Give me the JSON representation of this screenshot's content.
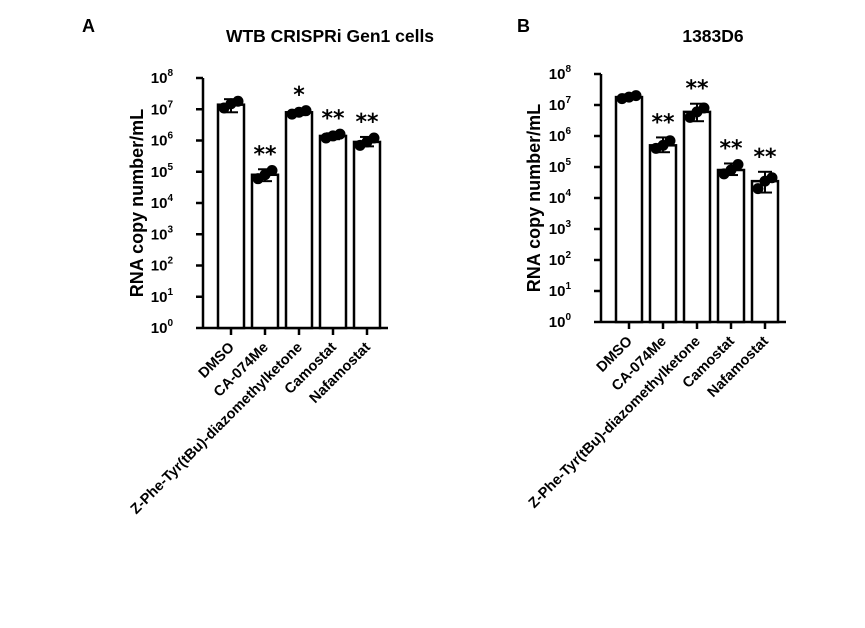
{
  "chart_data": [
    {
      "type": "bar",
      "panel": "A",
      "title": "WTB CRISPRi Gen1 cells",
      "xlabel": "",
      "ylabel": "RNA copy number/mL",
      "yscale": "log",
      "ylim": [
        1,
        100000000
      ],
      "yticks": [
        {
          "base": "10",
          "exp": "0"
        },
        {
          "base": "10",
          "exp": "1"
        },
        {
          "base": "10",
          "exp": "2"
        },
        {
          "base": "10",
          "exp": "3"
        },
        {
          "base": "10",
          "exp": "4"
        },
        {
          "base": "10",
          "exp": "5"
        },
        {
          "base": "10",
          "exp": "6"
        },
        {
          "base": "10",
          "exp": "7"
        },
        {
          "base": "10",
          "exp": "8"
        }
      ],
      "categories": [
        "DMSO",
        "CA-074Me",
        "Z-Phe-Tyr(tBu)-diazomethylketone",
        "Camostat",
        "Nafamostat"
      ],
      "values": [
        14000000,
        80000,
        8000000,
        1400000,
        900000
      ],
      "error_low": [
        8000000,
        50000,
        6500000,
        1100000,
        650000
      ],
      "error_high": [
        21000000,
        120000,
        9500000,
        1700000,
        1300000
      ],
      "points": [
        [
          11000000,
          15000000,
          18000000
        ],
        [
          60000,
          80000,
          110000
        ],
        [
          7000000,
          8000000,
          9000000
        ],
        [
          1200000,
          1400000,
          1600000
        ],
        [
          700000,
          900000,
          1200000
        ]
      ],
      "significance": [
        "",
        "**",
        "*",
        "**",
        "**"
      ]
    },
    {
      "type": "bar",
      "panel": "B",
      "title": "1383D6",
      "xlabel": "",
      "ylabel": "RNA copy number/mL",
      "yscale": "log",
      "ylim": [
        1,
        100000000
      ],
      "yticks": [
        {
          "base": "10",
          "exp": "0"
        },
        {
          "base": "10",
          "exp": "1"
        },
        {
          "base": "10",
          "exp": "2"
        },
        {
          "base": "10",
          "exp": "3"
        },
        {
          "base": "10",
          "exp": "4"
        },
        {
          "base": "10",
          "exp": "5"
        },
        {
          "base": "10",
          "exp": "6"
        },
        {
          "base": "10",
          "exp": "7"
        },
        {
          "base": "10",
          "exp": "8"
        }
      ],
      "categories": [
        "DMSO",
        "CA-074Me",
        "Z-Phe-Tyr(tBu)-diazomethylketone",
        "Camostat",
        "Nafamostat"
      ],
      "values": [
        18000000,
        500000,
        6000000,
        80000,
        35000
      ],
      "error_low": [
        15000000,
        300000,
        3000000,
        55000,
        15000
      ],
      "error_high": [
        22000000,
        900000,
        11000000,
        130000,
        70000
      ],
      "points": [
        [
          16000000,
          18000000,
          20000000
        ],
        [
          400000,
          500000,
          700000
        ],
        [
          4000000,
          6000000,
          8000000
        ],
        [
          60000,
          80000,
          120000
        ],
        [
          20000,
          35000,
          45000
        ]
      ],
      "significance": [
        "",
        "**",
        "**",
        "**",
        "**"
      ]
    }
  ]
}
